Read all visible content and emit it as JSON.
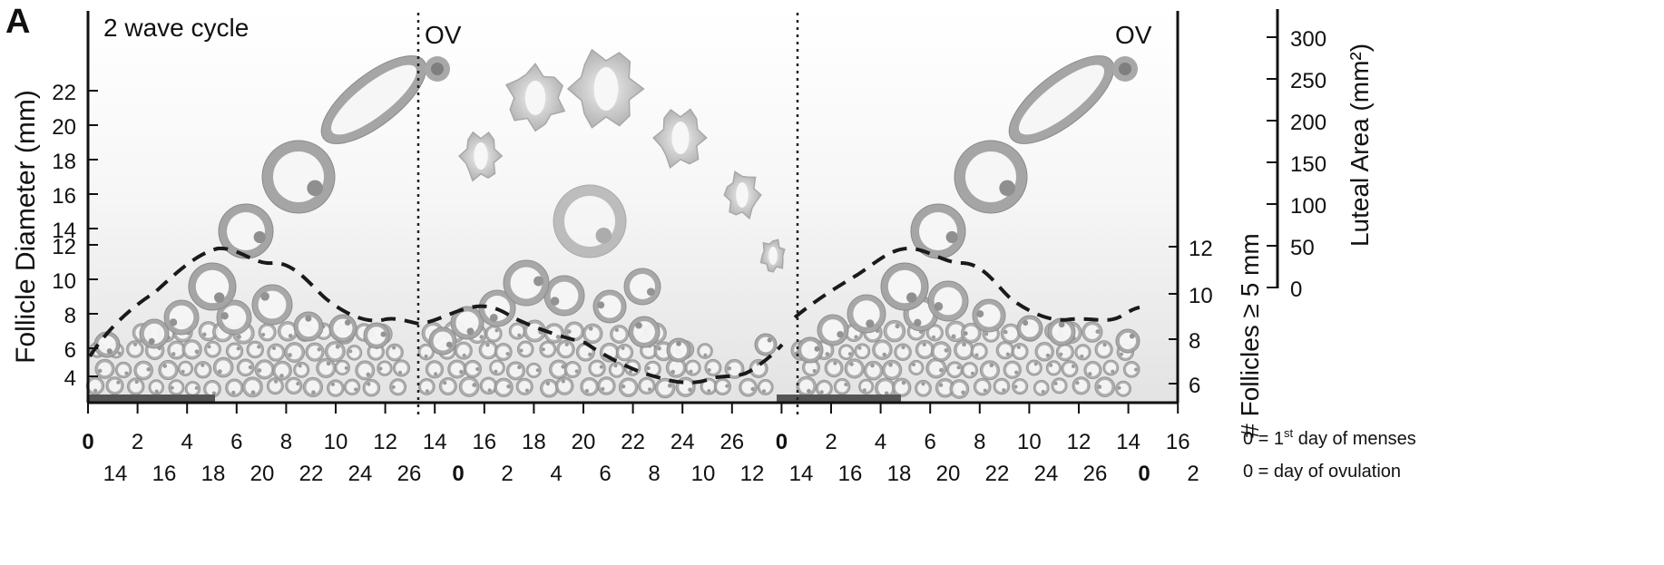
{
  "panel_label": "A",
  "cycle_title": "2 wave cycle",
  "ov_labels": [
    "OV",
    "OV"
  ],
  "y_left": {
    "label": "Follicle Diameter (mm)",
    "ticks": [
      "22",
      "20",
      "18",
      "16",
      "14",
      "12",
      "10",
      "8",
      "6",
      "4"
    ]
  },
  "y_mid": {
    "label": "# Follicles ≥ 5 mm",
    "ticks": [
      "12",
      "10",
      "8",
      "6"
    ]
  },
  "y_right": {
    "label": "Luteal Area (mm²)",
    "ticks": [
      "300",
      "250",
      "200",
      "150",
      "100",
      "50",
      "0"
    ]
  },
  "x_row1": [
    "0",
    "2",
    "4",
    "6",
    "8",
    "10",
    "12",
    "14",
    "16",
    "18",
    "20",
    "22",
    "24",
    "26",
    "0",
    "2",
    "4",
    "6",
    "8",
    "10",
    "12",
    "14",
    "16"
  ],
  "x_row1_bold": [
    0,
    14
  ],
  "x_row2": [
    "14",
    "16",
    "18",
    "20",
    "22",
    "24",
    "26",
    "0",
    "2",
    "4",
    "6",
    "8",
    "10",
    "12",
    "14",
    "16",
    "18",
    "20",
    "22",
    "24",
    "26",
    "0",
    "2"
  ],
  "x_row2_bold": [
    7,
    21
  ],
  "legend_notes": {
    "menses": {
      "zero": "0",
      "eq": " = 1",
      "sup": "st",
      "rest": " day of menses"
    },
    "ovulation": {
      "zero": "0",
      "eq": " = day of ovulation"
    }
  },
  "colors": {
    "follicle": "#9a9a9a",
    "luteal": "#c4c4c4",
    "line": "#1a1a1a",
    "menses_bar": "#555555"
  }
}
